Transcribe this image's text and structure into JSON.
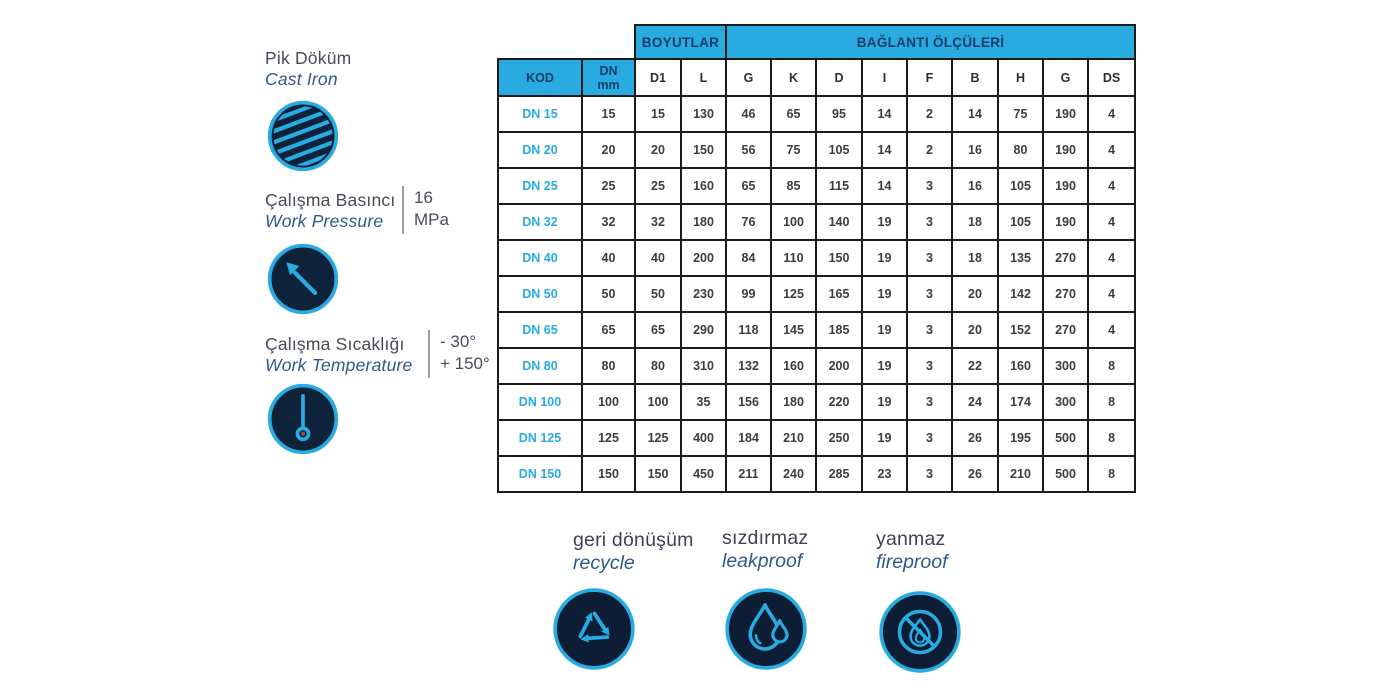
{
  "colors": {
    "accent": "#29abe2",
    "icon_fill": "#0e2239",
    "header_text": "#153d66",
    "table_border": "#1b1b1b",
    "data_text": "#3d3d3d",
    "thermometer_dot": "#9c4a3c"
  },
  "left_panel": {
    "items": [
      {
        "title": "Pik Döküm",
        "subtitle": "Cast Iron",
        "icon": "cast-iron-icon",
        "value": ""
      },
      {
        "title": "Çalışma Basıncı",
        "subtitle": "Work Pressure",
        "icon": "pressure-gauge-icon",
        "value": "16\nMPa"
      },
      {
        "title": "Çalışma Sıcaklığı",
        "subtitle": "Work Temperature",
        "icon": "thermometer-icon",
        "value": "- 30°\n+ 150°"
      }
    ]
  },
  "table": {
    "group_headers": [
      {
        "label": "BOYUTLAR",
        "span": 2
      },
      {
        "label": "BAĞLANTI ÖLÇÜLERİ",
        "span": 9
      }
    ],
    "columns": [
      "KOD",
      "DN\nmm",
      "D1",
      "L",
      "G",
      "K",
      "D",
      "I",
      "F",
      "B",
      "H",
      "G",
      "DS"
    ],
    "rows": [
      {
        "kod": "DN 15",
        "values": [
          "15",
          "15",
          "130",
          "46",
          "65",
          "95",
          "14",
          "2",
          "14",
          "75",
          "190",
          "4"
        ]
      },
      {
        "kod": "DN 20",
        "values": [
          "20",
          "20",
          "150",
          "56",
          "75",
          "105",
          "14",
          "2",
          "16",
          "80",
          "190",
          "4"
        ]
      },
      {
        "kod": "DN 25",
        "values": [
          "25",
          "25",
          "160",
          "65",
          "85",
          "115",
          "14",
          "3",
          "16",
          "105",
          "190",
          "4"
        ]
      },
      {
        "kod": "DN 32",
        "values": [
          "32",
          "32",
          "180",
          "76",
          "100",
          "140",
          "19",
          "3",
          "18",
          "105",
          "190",
          "4"
        ]
      },
      {
        "kod": "DN 40",
        "values": [
          "40",
          "40",
          "200",
          "84",
          "110",
          "150",
          "19",
          "3",
          "18",
          "135",
          "270",
          "4"
        ]
      },
      {
        "kod": "DN 50",
        "values": [
          "50",
          "50",
          "230",
          "99",
          "125",
          "165",
          "19",
          "3",
          "20",
          "142",
          "270",
          "4"
        ]
      },
      {
        "kod": "DN 65",
        "values": [
          "65",
          "65",
          "290",
          "118",
          "145",
          "185",
          "19",
          "3",
          "20",
          "152",
          "270",
          "4"
        ]
      },
      {
        "kod": "DN 80",
        "values": [
          "80",
          "80",
          "310",
          "132",
          "160",
          "200",
          "19",
          "3",
          "22",
          "160",
          "300",
          "8"
        ]
      },
      {
        "kod": "DN 100",
        "values": [
          "100",
          "100",
          "35",
          "156",
          "180",
          "220",
          "19",
          "3",
          "24",
          "174",
          "300",
          "8"
        ]
      },
      {
        "kod": "DN 125",
        "values": [
          "125",
          "125",
          "400",
          "184",
          "210",
          "250",
          "19",
          "3",
          "26",
          "195",
          "500",
          "8"
        ]
      },
      {
        "kod": "DN 150",
        "values": [
          "150",
          "150",
          "450",
          "211",
          "240",
          "285",
          "23",
          "3",
          "26",
          "210",
          "500",
          "8"
        ]
      }
    ]
  },
  "footer_badges": [
    {
      "title": "geri dönüşüm",
      "subtitle": "recycle",
      "icon": "recycle-icon"
    },
    {
      "title": "sızdırmaz",
      "subtitle": "leakproof",
      "icon": "water-drop-icon"
    },
    {
      "title": "yanmaz",
      "subtitle": "fireproof",
      "icon": "no-fire-icon"
    }
  ]
}
